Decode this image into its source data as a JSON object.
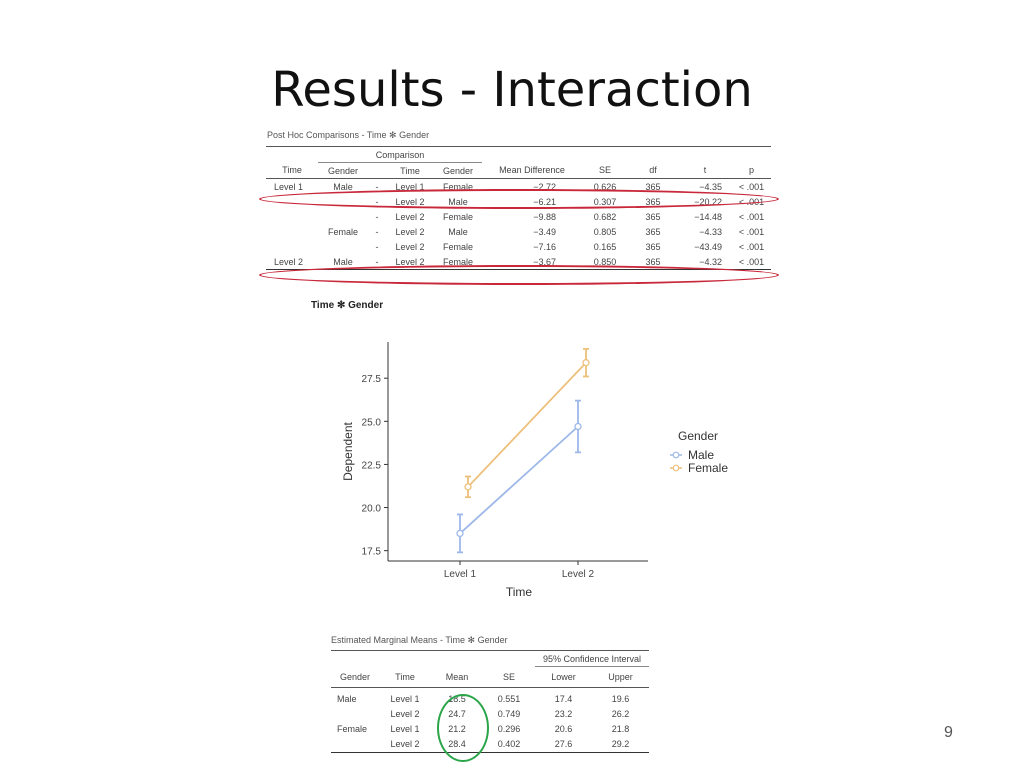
{
  "slide": {
    "title": "Results - Interaction",
    "page_number": "9"
  },
  "posthoc": {
    "title": "Post Hoc Comparisons - Time ✻ Gender",
    "group_header": "Comparison",
    "columns": [
      "Time",
      "Gender",
      "",
      "Time",
      "Gender",
      "Mean Difference",
      "SE",
      "df",
      "t",
      "p"
    ],
    "rows": [
      [
        "Level 1",
        "Male",
        "-",
        "Level 1",
        "Female",
        "−2.72",
        "0.626",
        "365",
        "−4.35",
        "< .001"
      ],
      [
        "",
        "",
        "-",
        "Level 2",
        "Male",
        "−6.21",
        "0.307",
        "365",
        "−20.22",
        "< .001"
      ],
      [
        "",
        "",
        "-",
        "Level 2",
        "Female",
        "−9.88",
        "0.682",
        "365",
        "−14.48",
        "< .001"
      ],
      [
        "",
        "Female",
        "-",
        "Level 2",
        "Male",
        "−3.49",
        "0.805",
        "365",
        "−4.33",
        "< .001"
      ],
      [
        "",
        "",
        "-",
        "Level 2",
        "Female",
        "−7.16",
        "0.165",
        "365",
        "−43.49",
        "< .001"
      ],
      [
        "Level 2",
        "Male",
        "-",
        "Level 2",
        "Female",
        "−3.67",
        "0.850",
        "365",
        "−4.32",
        "< .001"
      ]
    ]
  },
  "plot": {
    "heading": "Time ✻ Gender"
  },
  "chart_data": {
    "type": "line",
    "categories": [
      "Level 1",
      "Level 2"
    ],
    "xlabel": "Time",
    "ylabel": "Dependent",
    "ylim": [
      16.9,
      29.6
    ],
    "yticks": [
      "17.5",
      "20.0",
      "22.5",
      "25.0",
      "27.5"
    ],
    "legend_title": "Gender",
    "legend_position": "right",
    "grid": false,
    "series": [
      {
        "name": "Male",
        "color": "#9db8e8",
        "values": [
          18.5,
          24.7
        ],
        "lower": [
          17.4,
          23.2
        ],
        "upper": [
          19.6,
          26.2
        ]
      },
      {
        "name": "Female",
        "color": "#edc07b",
        "values": [
          21.2,
          28.4
        ],
        "lower": [
          20.6,
          27.6
        ],
        "upper": [
          21.8,
          29.2
        ]
      }
    ]
  },
  "emm": {
    "title": "Estimated Marginal Means - Time ✻ Gender",
    "ci_header": "95% Confidence Interval",
    "columns": [
      "Gender",
      "Time",
      "Mean",
      "SE",
      "Lower",
      "Upper"
    ],
    "rows": [
      [
        "Male",
        "Level 1",
        "18.5",
        "0.551",
        "17.4",
        "19.6"
      ],
      [
        "",
        "Level 2",
        "24.7",
        "0.749",
        "23.2",
        "26.2"
      ],
      [
        "Female",
        "Level 1",
        "21.2",
        "0.296",
        "20.6",
        "21.8"
      ],
      [
        "",
        "Level 2",
        "28.4",
        "0.402",
        "27.6",
        "29.2"
      ]
    ]
  }
}
